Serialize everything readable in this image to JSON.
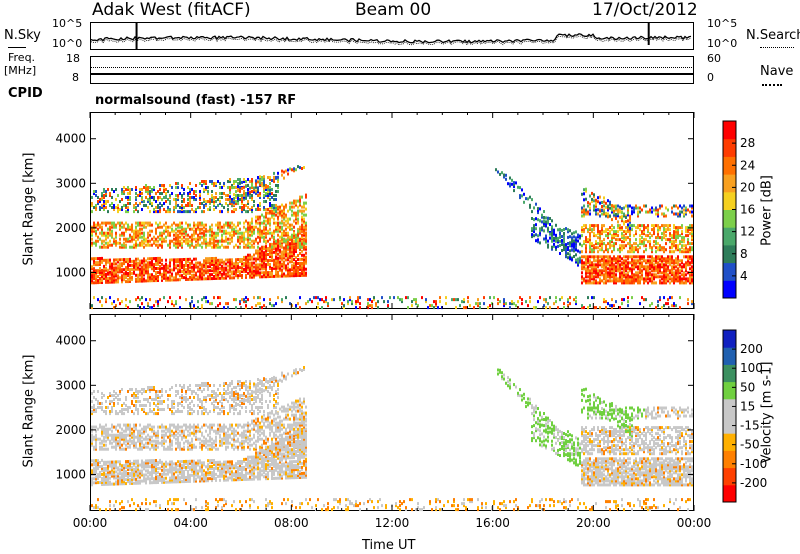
{
  "header": {
    "title_left": "Adak West (fitACF)",
    "title_center": "Beam 00",
    "title_right": "17/Oct/2012"
  },
  "top_panel": {
    "left_label": "N.Sky",
    "right_label": "N.Search",
    "left_ticks": [
      "10^5",
      "10^0"
    ],
    "right_ticks": [
      "10^5",
      "10^0"
    ]
  },
  "freq_panel": {
    "left_label_1": "Freq.",
    "left_label_2": "[MHz]",
    "left_ticks": [
      "18",
      "8"
    ],
    "right_label": "Nave",
    "right_ticks": [
      "60",
      "0"
    ]
  },
  "cpid": {
    "label": "CPID",
    "text": "normalsound (fast) -157 RF"
  },
  "colors": {
    "power": [
      "#0000ff",
      "#2050c8",
      "#2e7d5a",
      "#4aa86a",
      "#7ccf4a",
      "#f5d020",
      "#f8a020",
      "#ff7000",
      "#ff3c00",
      "#ff0000"
    ],
    "velocity": [
      "#ff0000",
      "#ff4000",
      "#ff8000",
      "#ffb000",
      "#c8c8c8",
      "#c8c8c8",
      "#70d040",
      "#3c9060",
      "#2060b0",
      "#1020c0"
    ]
  },
  "chart_data": [
    {
      "type": "heatmap",
      "name": "power",
      "ylabel": "Slant Range [km]",
      "yticks": [
        1000,
        2000,
        3000,
        4000
      ],
      "ylim": [
        180,
        4600
      ],
      "colorbar_label": "Power [dB]",
      "colorbar_ticks": [
        4,
        8,
        12,
        16,
        20,
        24,
        28
      ],
      "colorbar_range": [
        0,
        32
      ]
    },
    {
      "type": "heatmap",
      "name": "velocity",
      "ylabel": "Slant Range [km]",
      "yticks": [
        1000,
        2000,
        3000,
        4000
      ],
      "ylim": [
        180,
        4600
      ],
      "colorbar_label": "Velocity [m s-1]",
      "colorbar_ticks": [
        "200",
        "100",
        "50",
        "15",
        "-15",
        "-50",
        "-100",
        "-200"
      ]
    }
  ],
  "x_axis": {
    "xlabel": "Time UT",
    "xticks": [
      "00:00",
      "04:00",
      "08:00",
      "12:00",
      "16:00",
      "20:00",
      "00:00"
    ],
    "xlim_hours": [
      0,
      24
    ]
  }
}
